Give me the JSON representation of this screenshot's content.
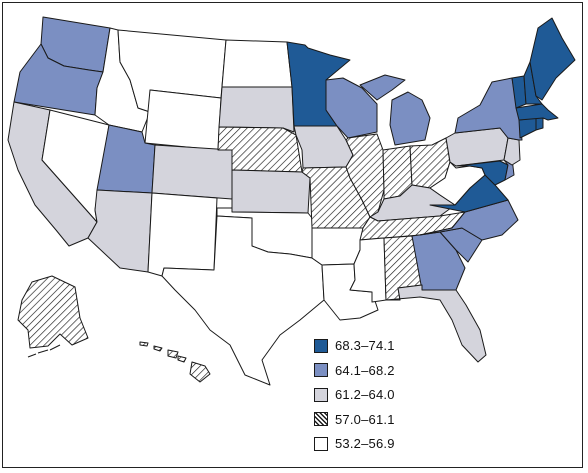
{
  "legend": {
    "classes": [
      {
        "label": "68.3–74.1",
        "pattern": "solid-dark",
        "color": "#1f5a96"
      },
      {
        "label": "64.1–68.2",
        "pattern": "solid-medium",
        "color": "#7b8fc2"
      },
      {
        "label": "61.2–64.0",
        "pattern": "solid-light",
        "color": "#d4d4dc"
      },
      {
        "label": "57.0–61.1",
        "pattern": "diagonal-hatch",
        "color": "#1a1a1a"
      },
      {
        "label": "53.2–56.9",
        "pattern": "none",
        "color": "#ffffff"
      }
    ]
  },
  "states": {
    "WA": 1,
    "OR": 1,
    "CA": 2,
    "NV": 4,
    "ID": 4,
    "MT": 4,
    "WY": 4,
    "UT": 1,
    "AZ": 2,
    "CO": 2,
    "NM": 4,
    "ND": 4,
    "SD": 2,
    "NE": 3,
    "KS": 2,
    "OK": 4,
    "TX": 4,
    "MN": 0,
    "IA": 2,
    "MO": 3,
    "AR": 4,
    "LA": 4,
    "WI": 1,
    "IL": 3,
    "MS": 4,
    "MI": 1,
    "IN": 3,
    "KY": 2,
    "TN": 3,
    "AL": 3,
    "OH": 3,
    "GA": 1,
    "FL": 2,
    "SC": 1,
    "NC": 1,
    "VA": 0,
    "WV": 4,
    "MD": 0,
    "DE": 1,
    "PA": 2,
    "NJ": 2,
    "NY": 1,
    "CT": 0,
    "RI": 0,
    "MA": 0,
    "VT": 0,
    "NH": 0,
    "ME": 0,
    "AK": 3,
    "HI": 3
  }
}
